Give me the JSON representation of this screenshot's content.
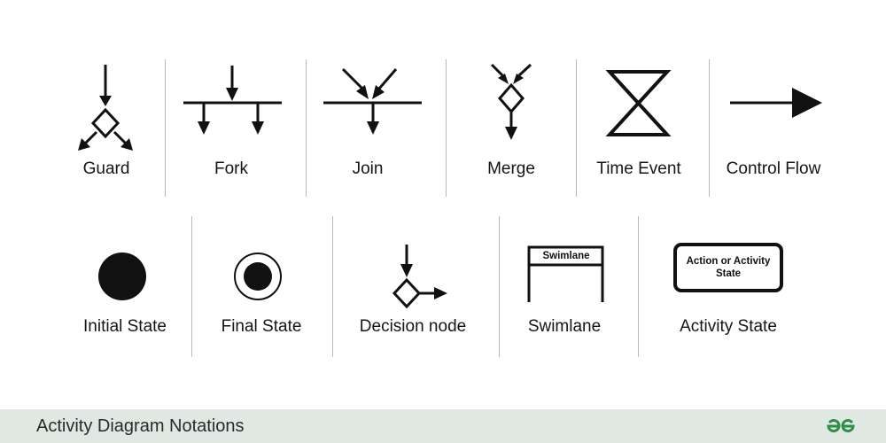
{
  "notations": {
    "guard": "Guard",
    "fork": "Fork",
    "join": "Join",
    "merge": "Merge",
    "time_event": "Time Event",
    "control_flow": "Control Flow",
    "initial_state": "Initial State",
    "final_state": "Final State",
    "decision_node": "Decision node",
    "swimlane": "Swimlane",
    "activity_state": "Activity State"
  },
  "symbols": {
    "swimlane_header": "Swimlane",
    "activity_box": "Action or Activity State"
  },
  "footer": {
    "title": "Activity Diagram Notations",
    "logo_icon": "geeksforgeeks-logo-icon"
  },
  "colors": {
    "ink": "#111111",
    "footer_bg": "#dfe8e3",
    "logo_green": "#2f8d46"
  }
}
